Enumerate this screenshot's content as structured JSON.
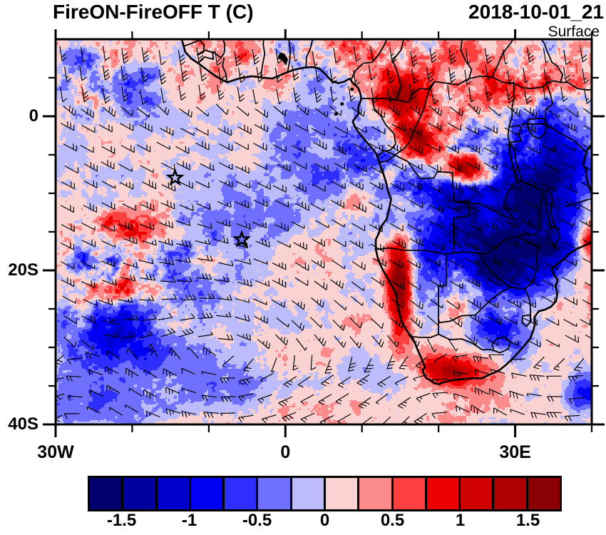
{
  "figure": {
    "title": "FireON-FireOFF T (C)",
    "datetime": "2018-10-01_21",
    "level": "Surface"
  },
  "chart_data": {
    "type": "heatmap",
    "title": "FireON-FireOFF T (C)",
    "datetime": "2018-10-01_21",
    "level": "Surface",
    "variable": "Surface temperature difference, FireON minus FireOFF (C)",
    "projection": "cylindrical lat-lon over Africa and the South Atlantic",
    "domain": {
      "lon_min": -30,
      "lon_max": 40,
      "lat_min": -40,
      "lat_max": 10
    },
    "x_axis": {
      "ticks": [
        {
          "label": "30W",
          "lon": -30
        },
        {
          "label": "0",
          "lon": 0
        },
        {
          "label": "30E",
          "lon": 30
        }
      ],
      "minor_tick_interval_deg": 10
    },
    "y_axis": {
      "ticks": [
        {
          "label": "0",
          "lat": 0
        },
        {
          "label": "20S",
          "lat": -20
        },
        {
          "label": "40S",
          "lat": -40
        }
      ],
      "minor_tick_interval_deg": 5
    },
    "colorbar": {
      "units": "C",
      "cell_edges": [
        -1.75,
        -1.5,
        -1.25,
        -1,
        -0.75,
        -0.5,
        -0.25,
        0,
        0.25,
        0.5,
        0.75,
        1,
        1.25,
        1.5,
        1.75
      ],
      "colors": [
        "#00006E",
        "#0000A0",
        "#0000CD",
        "#0000F5",
        "#2E2EFF",
        "#7070FF",
        "#BCBCFA",
        "#FBD2D2",
        "#FB8A8A",
        "#FC4040",
        "#EF0000",
        "#CE0000",
        "#AD0000",
        "#8B0000"
      ],
      "tick_labels": [
        "-1.5",
        "-1",
        "-0.5",
        "0",
        "0.5",
        "1",
        "1.5"
      ],
      "tick_values": [
        -1.5,
        -1,
        -0.5,
        0,
        0.5,
        1,
        1.5
      ]
    },
    "overlays": [
      "filled temperature-difference field",
      "wind barbs",
      "coastlines",
      "country borders",
      "lake outlines",
      "star markers"
    ],
    "markers": [
      {
        "symbol": "star",
        "lon": -14.4,
        "lat": -8.0
      },
      {
        "symbol": "star",
        "lon": -5.7,
        "lat": -16.0
      }
    ],
    "visible_features": [
      "pale pink background (0 to +0.25 C) over most of the South Atlantic",
      "light lavender bands (-0.25 to 0 C) sweeping SW-NE across the central ocean",
      "noisy speckle field of +/-1 C patches in the western tropical Atlantic",
      "large strong cooling (-1 to -1.75 C) over the southern African interior (Angola, Zambia, Zimbabwe, Botswana, eastern South Africa)",
      "intense warm spots (+1 to +1.75 C) over southern DR Congo, the Namib coastal strip, southwestern South Africa and Cameroon",
      "wind barbs: southeast trades over the ocean, southerly monsoon flow north of the equator, westerlies south of about 33S",
      "two star markers plotted in the open tropical South Atlantic"
    ]
  }
}
